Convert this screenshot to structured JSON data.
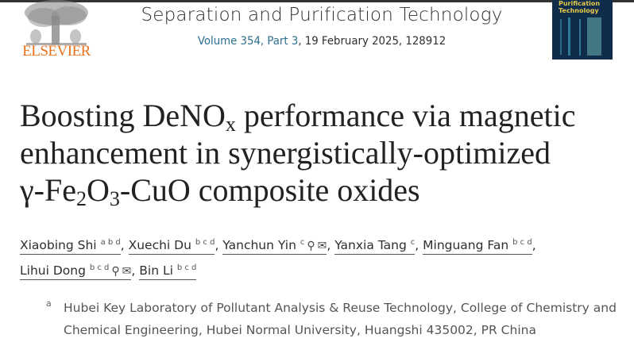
{
  "publisher": {
    "name": "ELSEVIER",
    "brand_color": "#e9711c"
  },
  "journal": {
    "title": "Separation and Purification Technology",
    "volume_link": "Volume 354, Part 3",
    "volume_rest": ", 19 February 2025, 128912",
    "cover_text": "Purification Technology"
  },
  "article": {
    "title_line1_a": "Boosting DeNO",
    "title_line1_sub": "x",
    "title_line1_b": " performance via magnetic",
    "title_line2": "enhancement in synergistically-optimized",
    "title_line3_a": "γ-Fe",
    "title_line3_sub1": "2",
    "title_line3_b": "O",
    "title_line3_sub2": "3",
    "title_line3_c": "-CuO composite oxides"
  },
  "authors": [
    {
      "name": "Xiaobing Shi",
      "aff": "a b d",
      "icons": []
    },
    {
      "name": "Xuechi Du",
      "aff": "b c d",
      "icons": []
    },
    {
      "name": "Yanchun Yin",
      "aff": "c",
      "icons": [
        "person-icon",
        "email-icon"
      ]
    },
    {
      "name": "Yanxia Tang",
      "aff": "c",
      "icons": []
    },
    {
      "name": "Minguang Fan",
      "aff": "b c d",
      "icons": []
    },
    {
      "name": "Lihui Dong",
      "aff": "b c d",
      "icons": [
        "person-icon",
        "email-icon"
      ]
    },
    {
      "name": "Bin Li",
      "aff": "b c d",
      "icons": []
    }
  ],
  "affiliations": [
    {
      "label": "a",
      "text": "Hubei Key Laboratory of Pollutant Analysis & Reuse Technology, College of Chemistry and Chemical Engineering, Hubei Normal University, Huangshi 435002, PR China"
    }
  ]
}
